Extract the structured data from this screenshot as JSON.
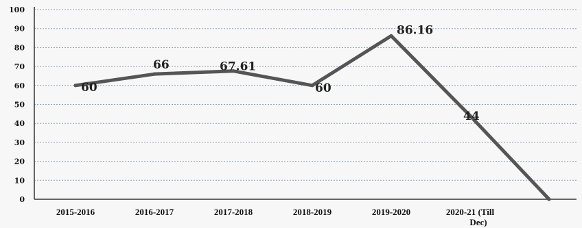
{
  "chart_data": {
    "type": "line",
    "title": "",
    "xlabel": "",
    "ylabel": "",
    "categories": [
      "2015-2016",
      "2016-2017",
      "2017-2018",
      "2018-2019",
      "2019-2020",
      "2020-21 (Till Dec)",
      ""
    ],
    "series": [
      {
        "values": [
          60,
          66,
          67.61,
          60,
          86.16,
          44,
          0
        ],
        "labels": [
          "60",
          "66",
          "67.61",
          "60",
          "86.16",
          "44",
          ""
        ],
        "color": "#555555"
      }
    ],
    "ylim": [
      0,
      100
    ],
    "yticks": [
      0,
      10,
      20,
      30,
      40,
      50,
      60,
      70,
      80,
      90,
      100
    ],
    "grid": true,
    "legend": "none"
  }
}
